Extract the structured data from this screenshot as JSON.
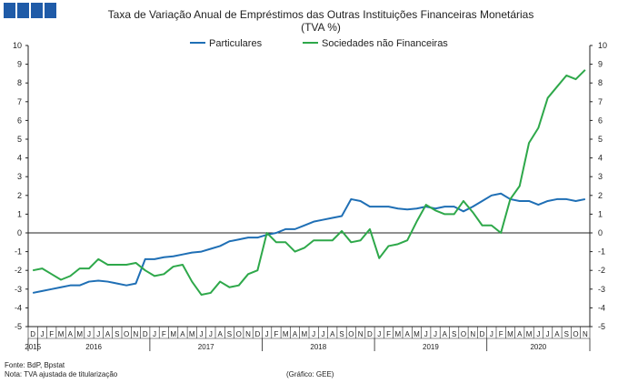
{
  "chart_data": {
    "type": "line",
    "title": "Taxa de Variação Anual de Empréstimos das Outras Instituições Financeiras Monetárias",
    "subtitle": "(TVA %)",
    "ylim": [
      -5,
      10
    ],
    "y_ticks": [
      "10",
      "9",
      "8",
      "7",
      "6",
      "5",
      "4",
      "3",
      "2",
      "1",
      "0",
      "-1",
      "-2",
      "-3",
      "-4",
      "-5"
    ],
    "months": [
      "D",
      "J",
      "F",
      "M",
      "A",
      "M",
      "J",
      "J",
      "A",
      "S",
      "O",
      "N",
      "D",
      "J",
      "F",
      "M",
      "A",
      "M",
      "J",
      "J",
      "A",
      "S",
      "O",
      "N",
      "D",
      "J",
      "F",
      "M",
      "A",
      "M",
      "J",
      "J",
      "A",
      "S",
      "O",
      "N",
      "D",
      "J",
      "F",
      "M",
      "A",
      "M",
      "J",
      "J",
      "A",
      "S",
      "O",
      "N",
      "D",
      "J",
      "F",
      "M",
      "A",
      "M",
      "J",
      "J",
      "A",
      "S",
      "O",
      "N"
    ],
    "years": [
      {
        "label": "2015",
        "start": 0,
        "end": 0
      },
      {
        "label": "2016",
        "start": 1,
        "end": 12
      },
      {
        "label": "2017",
        "start": 13,
        "end": 24
      },
      {
        "label": "2018",
        "start": 25,
        "end": 36
      },
      {
        "label": "2019",
        "start": 37,
        "end": 48
      },
      {
        "label": "2020",
        "start": 49,
        "end": 59
      }
    ],
    "grid": false,
    "legend": "top",
    "series": [
      {
        "name": "Particulares",
        "color": "#1f6fb5",
        "values": [
          -3.2,
          -3.1,
          -3.0,
          -2.9,
          -2.8,
          -2.8,
          -2.6,
          -2.55,
          -2.6,
          -2.7,
          -2.8,
          -2.7,
          -1.4,
          -1.4,
          -1.3,
          -1.25,
          -1.15,
          -1.05,
          -1.0,
          -0.85,
          -0.7,
          -0.45,
          -0.35,
          -0.25,
          -0.25,
          -0.1,
          0.0,
          0.2,
          0.2,
          0.4,
          0.6,
          0.7,
          0.8,
          0.9,
          1.8,
          1.7,
          1.4,
          1.4,
          1.4,
          1.3,
          1.25,
          1.3,
          1.4,
          1.3,
          1.4,
          1.4,
          1.15,
          1.4,
          1.7,
          2.0,
          2.1,
          1.8,
          1.7,
          1.7,
          1.5,
          1.7,
          1.8,
          1.8,
          1.7,
          1.8
        ]
      },
      {
        "name": "Sociedades não Financeiras",
        "color": "#2ea84a",
        "values": [
          -2.0,
          -1.9,
          -2.2,
          -2.5,
          -2.3,
          -1.9,
          -1.9,
          -1.4,
          -1.7,
          -1.7,
          -1.7,
          -1.6,
          -2.0,
          -2.3,
          -2.2,
          -1.8,
          -1.7,
          -2.6,
          -3.3,
          -3.2,
          -2.6,
          -2.9,
          -2.8,
          -2.2,
          -2.0,
          0.0,
          -0.5,
          -0.5,
          -1.0,
          -0.8,
          -0.4,
          -0.4,
          -0.4,
          0.1,
          -0.5,
          -0.4,
          0.2,
          -1.35,
          -0.7,
          -0.6,
          -0.4,
          0.6,
          1.5,
          1.2,
          1.0,
          1.0,
          1.7,
          1.1,
          0.4,
          0.4,
          0.0,
          1.8,
          2.5,
          4.8,
          5.6,
          7.2,
          7.8,
          8.4,
          8.2,
          8.7
        ]
      }
    ]
  },
  "footer": {
    "source": "Fonte: BdP, Bpstat",
    "note": "Nota: TVA ajustada de titularização",
    "credit": "(Gráfico: GEE)"
  },
  "logo_color": "#1f5ba8"
}
